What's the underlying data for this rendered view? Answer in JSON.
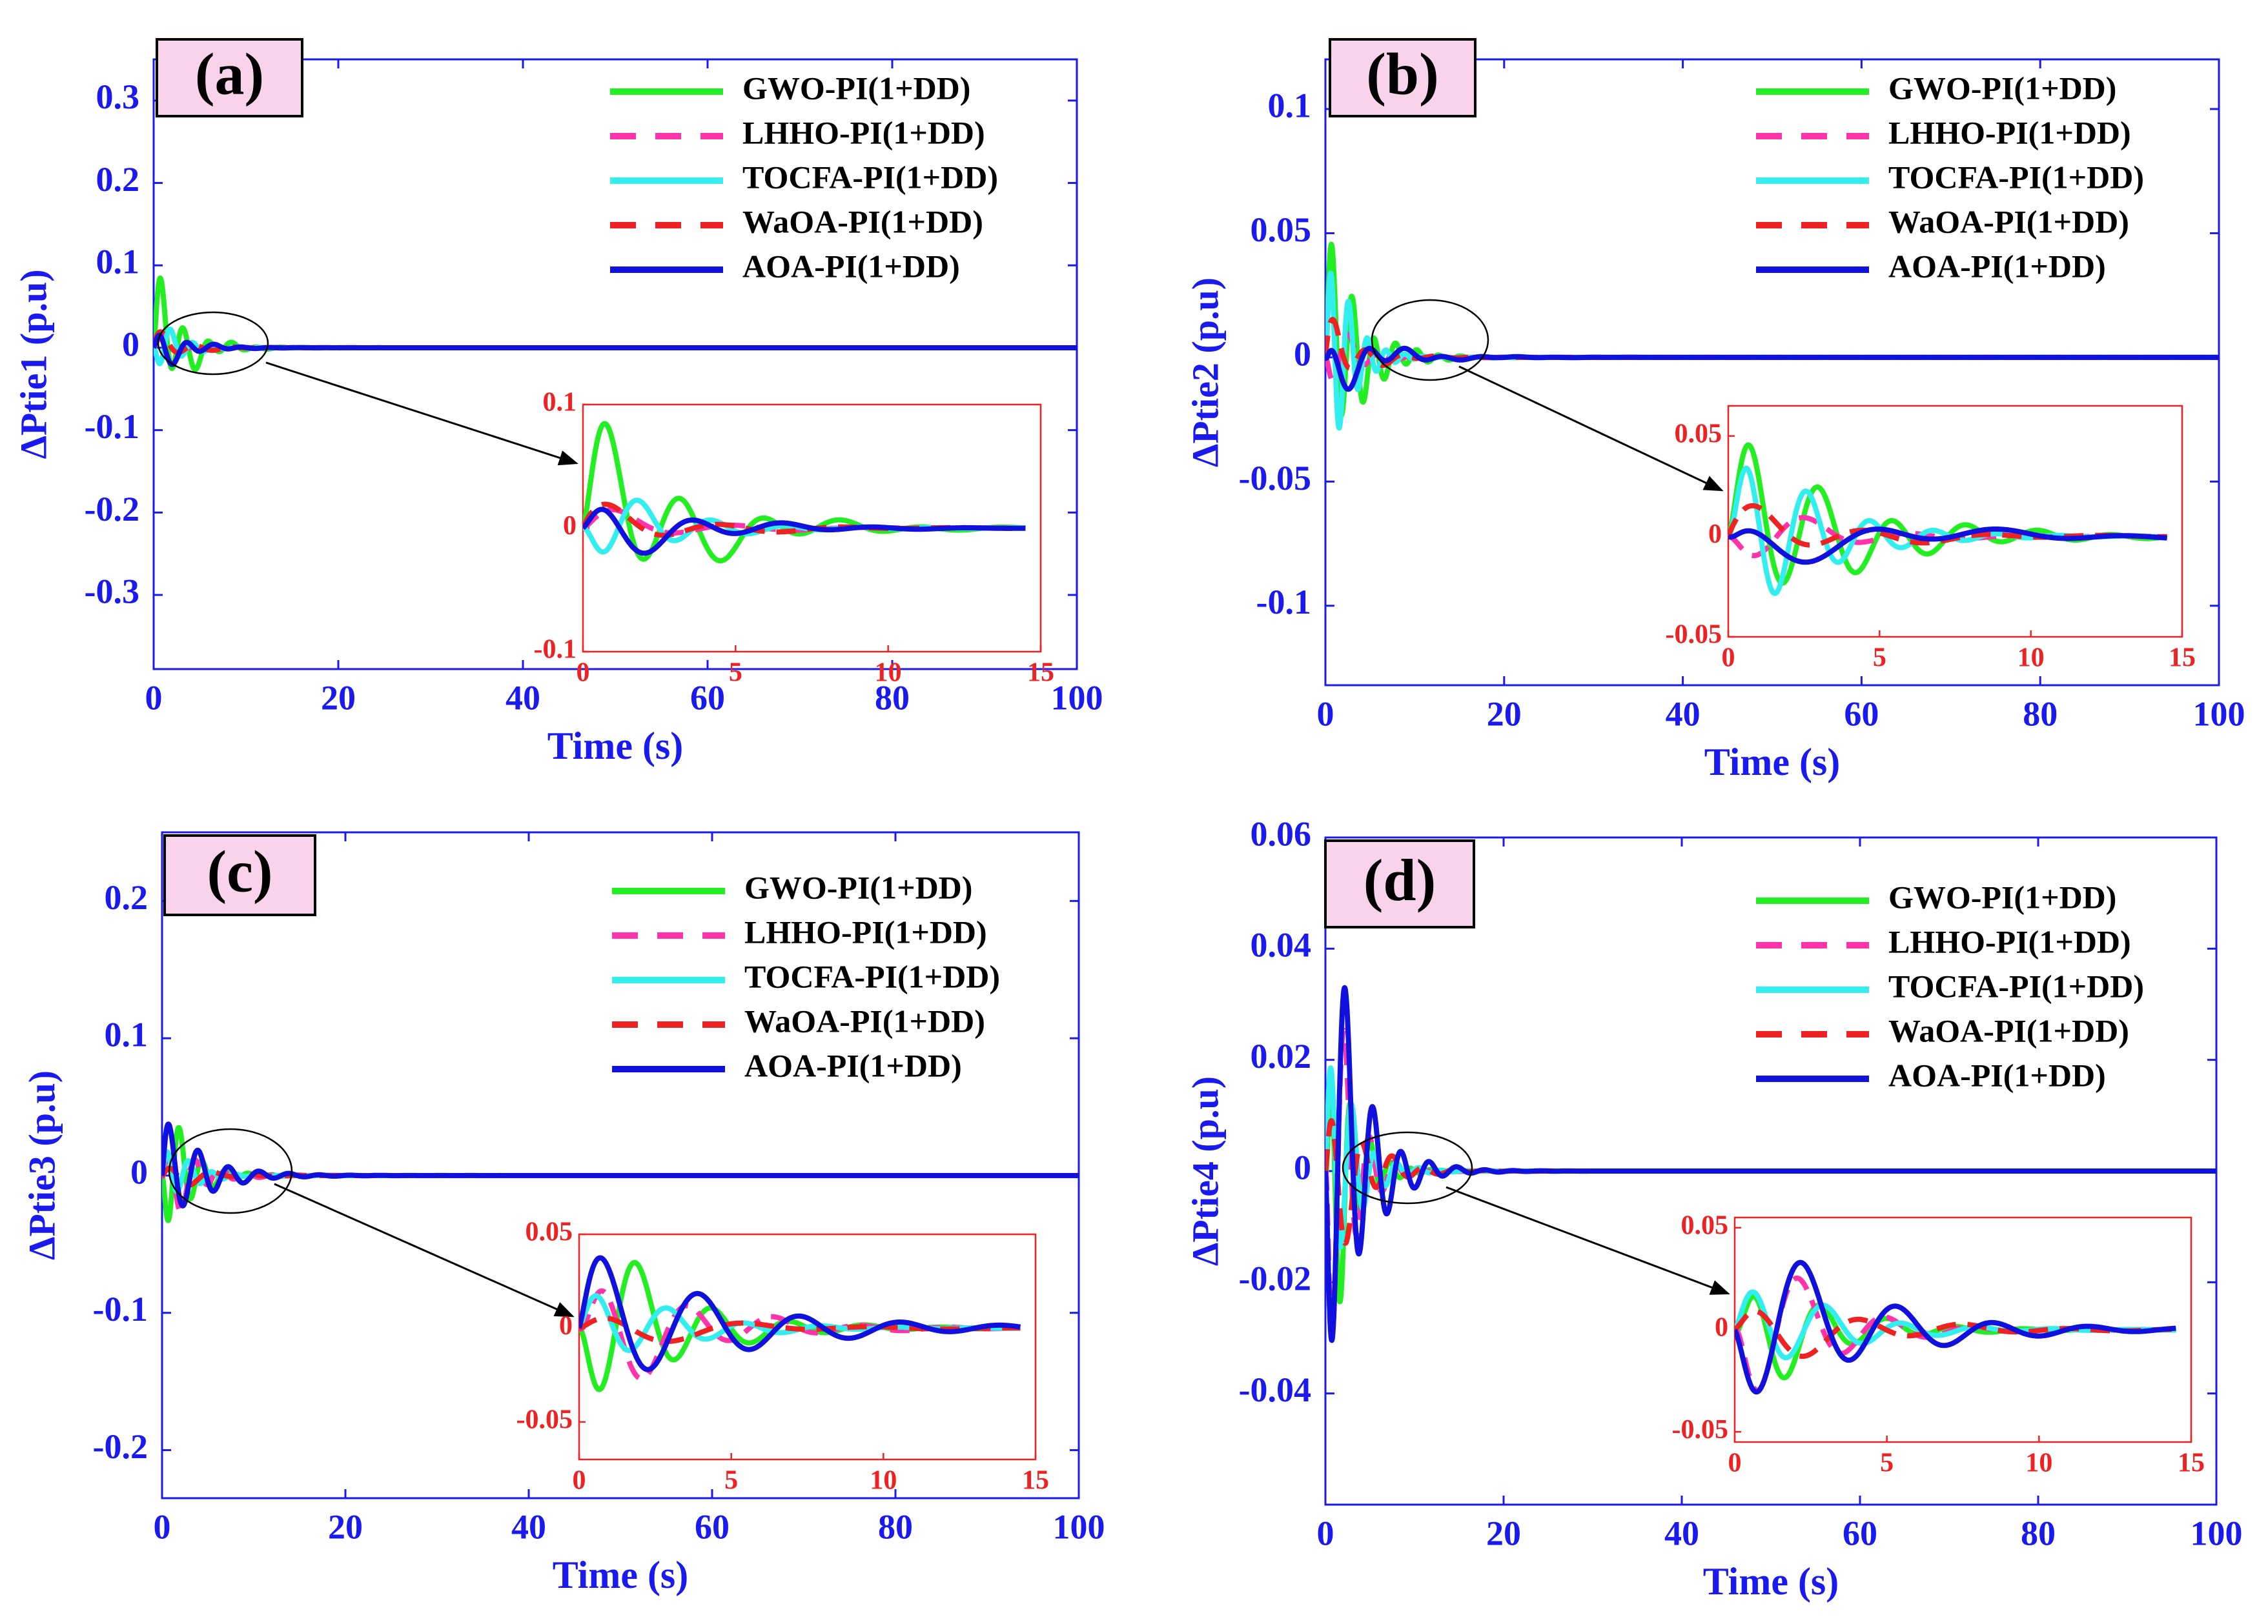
{
  "chart_data": [
    {
      "panel_label": "(a)",
      "type": "line",
      "xlabel": "Time (s)",
      "ylabel": "ΔPtie1 (p.u)",
      "xlim": [
        0,
        100
      ],
      "ylim": [
        -0.39,
        0.35
      ],
      "xticks": [
        0,
        20,
        40,
        60,
        80,
        100
      ],
      "yticks": [
        -0.3,
        -0.2,
        -0.1,
        0,
        0.1,
        0.2,
        0.3
      ],
      "xtick_labels": [
        "0",
        "20",
        "40",
        "60",
        "80",
        "100"
      ],
      "ytick_labels": [
        "-0.3",
        "-0.2",
        "-0.1",
        "0",
        "0.1",
        "0.2",
        "0.3"
      ],
      "legend_position": "top-right",
      "series": [
        {
          "name": "GWO-PI(1+DD)",
          "color": "#22ee22",
          "dash": "solid",
          "decay": 0.35,
          "waves": [
            [
              0.085,
              0.4,
              2.4,
              0
            ],
            [
              0.045,
              0.25,
              0.9,
              0.5
            ]
          ]
        },
        {
          "name": "LHHO-PI(1+DD)",
          "color": "#ff33aa",
          "dash": "dashed",
          "decay": 0.4,
          "waves": [
            [
              0.02,
              0.5,
              1.5,
              0.2
            ],
            [
              0.008,
              0.2,
              0.7,
              0
            ]
          ]
        },
        {
          "name": "TOCFA-PI(1+DD)",
          "color": "#33eeee",
          "dash": "solid",
          "decay": 0.45,
          "waves": [
            [
              0.045,
              0.6,
              2.6,
              3.1
            ],
            [
              0.008,
              0.2,
              0.8,
              0
            ]
          ]
        },
        {
          "name": "WaOA-PI(1+DD)",
          "color": "#ee2222",
          "dash": "dashed",
          "decay": 0.35,
          "waves": [
            [
              0.02,
              0.5,
              1.6,
              0.5
            ],
            [
              0.01,
              0.2,
              0.6,
              1.0
            ]
          ]
        },
        {
          "name": "AOA-PI(1+DD)",
          "color": "#1111dd",
          "dash": "solid",
          "decay": 0.35,
          "waves": [
            [
              0.03,
              0.4,
              2.1,
              0.3
            ],
            [
              0.012,
              0.2,
              0.7,
              3.14
            ]
          ]
        }
      ],
      "inset": {
        "xlim": [
          0,
          15
        ],
        "ylim": [
          -0.1,
          0.1
        ],
        "xticks": [
          0,
          5,
          10,
          15
        ],
        "yticks": [
          -0.1,
          0,
          0.1
        ],
        "xtick_labels": [
          "0",
          "5",
          "10",
          "15"
        ],
        "ytick_labels": [
          "-0.1",
          "0",
          "0.1"
        ]
      }
    },
    {
      "panel_label": "(b)",
      "type": "line",
      "xlabel": "Time (s)",
      "ylabel": "ΔPtie2 (p.u)",
      "xlim": [
        0,
        100
      ],
      "ylim": [
        -0.132,
        0.12
      ],
      "xticks": [
        0,
        20,
        40,
        60,
        80,
        100
      ],
      "yticks": [
        -0.1,
        -0.05,
        0,
        0.05,
        0.1
      ],
      "xtick_labels": [
        "0",
        "20",
        "40",
        "60",
        "80",
        "100"
      ],
      "ytick_labels": [
        "-0.1",
        "-0.05",
        "0",
        "0.05",
        "0.1"
      ],
      "legend_position": "top-right",
      "series": [
        {
          "name": "GWO-PI(1+DD)",
          "color": "#22ee22",
          "dash": "solid",
          "decay": 0.3,
          "waves": [
            [
              0.055,
              0.4,
              2.6,
              0
            ],
            [
              0.015,
              0.2,
              0.8,
              0.4
            ]
          ]
        },
        {
          "name": "LHHO-PI(1+DD)",
          "color": "#ff33aa",
          "dash": "dashed",
          "decay": 0.4,
          "waves": [
            [
              0.02,
              0.5,
              1.8,
              3.14
            ],
            [
              0.006,
              0.2,
              0.6,
              0
            ]
          ]
        },
        {
          "name": "TOCFA-PI(1+DD)",
          "color": "#33eeee",
          "dash": "solid",
          "decay": 0.45,
          "waves": [
            [
              0.068,
              0.6,
              3.0,
              0
            ],
            [
              0.006,
              0.2,
              0.8,
              0
            ]
          ]
        },
        {
          "name": "WaOA-PI(1+DD)",
          "color": "#ee2222",
          "dash": "dashed",
          "decay": 0.3,
          "waves": [
            [
              0.015,
              0.5,
              1.6,
              0.4
            ],
            [
              0.008,
              0.2,
              0.6,
              0.8
            ]
          ]
        },
        {
          "name": "AOA-PI(1+DD)",
          "color": "#1111dd",
          "dash": "solid",
          "decay": 0.2,
          "waves": [
            [
              0.012,
              0.35,
              1.5,
              0.6
            ],
            [
              0.01,
              0.15,
              0.5,
              3.6
            ]
          ]
        }
      ],
      "inset": {
        "xlim": [
          0,
          15
        ],
        "ylim": [
          -0.05,
          0.065
        ],
        "xticks": [
          0,
          5,
          10,
          15
        ],
        "yticks": [
          -0.05,
          0,
          0.05
        ],
        "xtick_labels": [
          "0",
          "5",
          "10",
          "15"
        ],
        "ytick_labels": [
          "-0.05",
          "0",
          "0.05"
        ]
      }
    },
    {
      "panel_label": "(c)",
      "type": "line",
      "xlabel": "Time (s)",
      "ylabel": "ΔPtie3 (p.u)",
      "xlim": [
        0,
        100
      ],
      "ylim": [
        -0.235,
        0.25
      ],
      "xticks": [
        0,
        20,
        40,
        60,
        80,
        100
      ],
      "yticks": [
        -0.2,
        -0.1,
        0,
        0.1,
        0.2
      ],
      "xtick_labels": [
        "0",
        "20",
        "40",
        "60",
        "80",
        "100"
      ],
      "ytick_labels": [
        "-0.2",
        "-0.1",
        "0",
        "0.1",
        "0.2"
      ],
      "legend_position": "top-right",
      "series": [
        {
          "name": "GWO-PI(1+DD)",
          "color": "#22ee22",
          "dash": "solid",
          "decay": 0.4,
          "waves": [
            [
              0.065,
              0.5,
              2.5,
              3.14
            ],
            [
              0.01,
              0.2,
              0.8,
              0
            ]
          ]
        },
        {
          "name": "LHHO-PI(1+DD)",
          "color": "#ff33aa",
          "dash": "dashed",
          "decay": 0.35,
          "waves": [
            [
              0.045,
              0.5,
              2.2,
              0
            ],
            [
              0.012,
              0.2,
              0.7,
              3.5
            ]
          ]
        },
        {
          "name": "TOCFA-PI(1+DD)",
          "color": "#33eeee",
          "dash": "solid",
          "decay": 0.4,
          "waves": [
            [
              0.03,
              0.5,
              2.5,
              0.5
            ],
            [
              0.006,
              0.2,
              0.8,
              0
            ]
          ]
        },
        {
          "name": "WaOA-PI(1+DD)",
          "color": "#ee2222",
          "dash": "dashed",
          "decay": 0.3,
          "waves": [
            [
              0.012,
              0.4,
              1.4,
              0.3
            ],
            [
              0.006,
              0.2,
              0.6,
              3.3
            ]
          ]
        },
        {
          "name": "AOA-PI(1+DD)",
          "color": "#1111dd",
          "dash": "solid",
          "decay": 0.25,
          "waves": [
            [
              0.045,
              0.25,
              1.9,
              0.3
            ],
            [
              0.006,
              0.12,
              0.6,
              0
            ]
          ]
        }
      ],
      "inset": {
        "xlim": [
          0,
          15
        ],
        "ylim": [
          -0.07,
          0.05
        ],
        "xticks": [
          0,
          5,
          10,
          15
        ],
        "yticks": [
          -0.05,
          0,
          0.05
        ],
        "xtick_labels": [
          "0",
          "5",
          "10",
          "15"
        ],
        "ytick_labels": [
          "-0.05",
          "0",
          "0.05"
        ]
      }
    },
    {
      "panel_label": "(d)",
      "type": "line",
      "xlabel": "Time (s)",
      "ylabel": "ΔPtie4 (p.u)",
      "xlim": [
        0,
        100
      ],
      "ylim": [
        -0.06,
        0.06
      ],
      "xticks": [
        0,
        20,
        40,
        60,
        80,
        100
      ],
      "yticks": [
        -0.04,
        -0.02,
        0,
        0.02,
        0.04,
        0.06
      ],
      "xtick_labels": [
        "0",
        "20",
        "40",
        "60",
        "80",
        "100"
      ],
      "ytick_labels": [
        "-0.04",
        "-0.02",
        "0",
        "0.02",
        "0.04",
        "0.06"
      ],
      "legend_position": "top-right",
      "series": [
        {
          "name": "GWO-PI(1+DD)",
          "color": "#22ee22",
          "dash": "solid",
          "decay": 0.45,
          "waves": [
            [
              0.045,
              0.6,
              2.8,
              0
            ],
            [
              0.008,
              0.2,
              0.8,
              3.8
            ]
          ]
        },
        {
          "name": "LHHO-PI(1+DD)",
          "color": "#ff33aa",
          "dash": "dashed",
          "decay": 0.45,
          "waves": [
            [
              0.06,
              0.5,
              2.2,
              3.14
            ],
            [
              0.006,
              0.2,
              0.6,
              0.5
            ]
          ]
        },
        {
          "name": "TOCFA-PI(1+DD)",
          "color": "#33eeee",
          "dash": "solid",
          "decay": 0.4,
          "waves": [
            [
              0.035,
              0.6,
              2.5,
              0.4
            ],
            [
              0.006,
              0.2,
              0.8,
              0
            ]
          ]
        },
        {
          "name": "WaOA-PI(1+DD)",
          "color": "#ee2222",
          "dash": "dashed",
          "decay": 0.3,
          "waves": [
            [
              0.02,
              0.5,
              1.8,
              0.5
            ],
            [
              0.006,
              0.2,
              0.6,
              3.4
            ]
          ]
        },
        {
          "name": "AOA-PI(1+DD)",
          "color": "#1111dd",
          "dash": "solid",
          "decay": 0.3,
          "waves": [
            [
              0.055,
              0.5,
              2.0,
              3.4
            ],
            [
              0.01,
              0.15,
              0.55,
              0
            ]
          ]
        }
      ],
      "inset": {
        "xlim": [
          0,
          15
        ],
        "ylim": [
          -0.055,
          0.055
        ],
        "xticks": [
          0,
          5,
          10,
          15
        ],
        "yticks": [
          -0.05,
          0,
          0.05
        ],
        "xtick_labels": [
          "0",
          "5",
          "10",
          "15"
        ],
        "ytick_labels": [
          "-0.05",
          "0",
          "0.05"
        ]
      }
    }
  ]
}
